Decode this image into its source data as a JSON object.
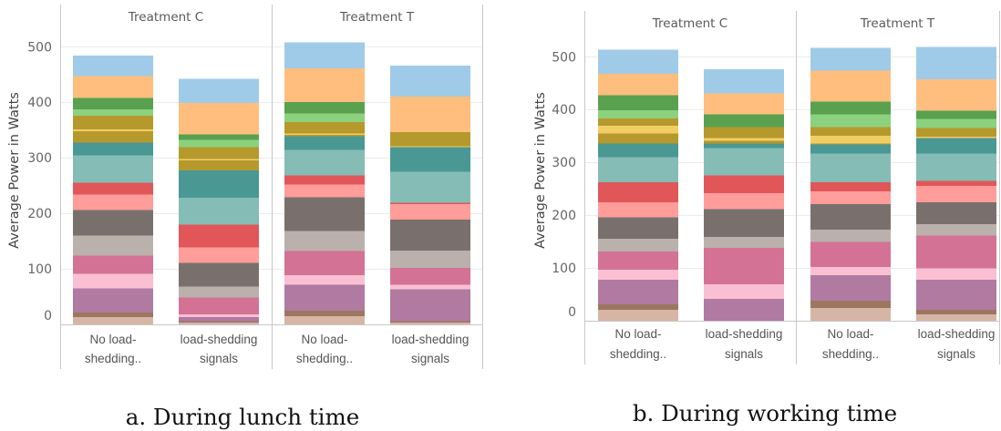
{
  "chart_data": [
    {
      "type": "bar",
      "stacked": true,
      "caption": "a. During lunch time",
      "ylabel": "Average Power in Watts",
      "ylim": [
        0,
        530
      ],
      "yticks": [
        0,
        100,
        200,
        300,
        400,
        500
      ],
      "grid": true,
      "facets": [
        "Treatment C",
        "Treatment T"
      ],
      "categories": [
        [
          "No load-",
          "shedding.."
        ],
        [
          "load-shedding",
          "signals"
        ]
      ],
      "series": [
        {
          "color": "#D7B5A6",
          "values": [
            [
              13,
              3
            ],
            [
              15,
              3
            ]
          ]
        },
        {
          "color": "#9D7660",
          "values": [
            [
              8,
              3
            ],
            [
              10,
              3
            ]
          ]
        },
        {
          "color": "#B07AA1",
          "values": [
            [
              44,
              7
            ],
            [
              46,
              57
            ]
          ]
        },
        {
          "color": "#FABFD2",
          "values": [
            [
              26,
              5
            ],
            [
              18,
              8
            ]
          ]
        },
        {
          "color": "#D37295",
          "values": [
            [
              33,
              30
            ],
            [
              43,
              31
            ]
          ]
        },
        {
          "color": "#BAB0AC",
          "values": [
            [
              36,
              20
            ],
            [
              36,
              31
            ]
          ]
        },
        {
          "color": "#79706E",
          "values": [
            [
              46,
              43
            ],
            [
              61,
              56
            ]
          ]
        },
        {
          "color": "#FF9D9A",
          "values": [
            [
              28,
              28
            ],
            [
              23,
              28
            ]
          ]
        },
        {
          "color": "#E15759",
          "values": [
            [
              21,
              41
            ],
            [
              16,
              2
            ]
          ]
        },
        {
          "color": "#86BCB6",
          "values": [
            [
              49,
              48
            ],
            [
              46,
              56
            ]
          ]
        },
        {
          "color": "#499894",
          "values": [
            [
              23,
              49
            ],
            [
              25,
              44
            ]
          ]
        },
        {
          "color": "#B6992D",
          "values": [
            [
              21,
              18
            ],
            [
              2,
              0
            ]
          ]
        },
        {
          "color": "#F1CE63",
          "values": [
            [
              3,
              3
            ],
            [
              3,
              2
            ]
          ]
        },
        {
          "color": "#B6992D",
          "values": [
            [
              25,
              21
            ],
            [
              20,
              25
            ]
          ]
        },
        {
          "color": "#8CD17D",
          "values": [
            [
              11,
              13
            ],
            [
              16,
              0
            ]
          ]
        },
        {
          "color": "#59A14F",
          "values": [
            [
              21,
              10
            ],
            [
              20,
              0
            ]
          ]
        },
        {
          "color": "#FFBE7D",
          "values": [
            [
              39,
              57
            ],
            [
              61,
              64
            ]
          ]
        },
        {
          "color": "#A0CBE8",
          "values": [
            [
              37,
              43
            ],
            [
              47,
              56
            ]
          ]
        }
      ]
    },
    {
      "type": "bar",
      "stacked": true,
      "caption": "b. During working time",
      "ylabel": "Average Power in Watts",
      "ylim": [
        0,
        535
      ],
      "yticks": [
        0,
        100,
        200,
        300,
        400,
        500
      ],
      "grid": true,
      "facets": [
        "Treatment C",
        "Treatment T"
      ],
      "categories": [
        [
          "No load-",
          "shedding.."
        ],
        [
          "load-shedding",
          "signals"
        ]
      ],
      "series": [
        {
          "color": "#D7B5A6",
          "values": [
            [
              21,
              0
            ],
            [
              24,
              12
            ]
          ]
        },
        {
          "color": "#9D7660",
          "values": [
            [
              10,
              0
            ],
            [
              14,
              9
            ]
          ]
        },
        {
          "color": "#B07AA1",
          "values": [
            [
              47,
              41
            ],
            [
              48,
              57
            ]
          ]
        },
        {
          "color": "#FABFD2",
          "values": [
            [
              19,
              28
            ],
            [
              16,
              21
            ]
          ]
        },
        {
          "color": "#D37295",
          "values": [
            [
              34,
              69
            ],
            [
              47,
              62
            ]
          ]
        },
        {
          "color": "#BAB0AC",
          "values": [
            [
              24,
              21
            ],
            [
              24,
              22
            ]
          ]
        },
        {
          "color": "#79706E",
          "values": [
            [
              41,
              52
            ],
            [
              48,
              41
            ]
          ]
        },
        {
          "color": "#FF9D9A",
          "values": [
            [
              28,
              31
            ],
            [
              24,
              31
            ]
          ]
        },
        {
          "color": "#E15759",
          "values": [
            [
              38,
              33
            ],
            [
              17,
              10
            ]
          ]
        },
        {
          "color": "#86BCB6",
          "values": [
            [
              48,
              52
            ],
            [
              55,
              52
            ]
          ]
        },
        {
          "color": "#499894",
          "values": [
            [
              26,
              9
            ],
            [
              17,
              29
            ]
          ]
        },
        {
          "color": "#B6992D",
          "values": [
            [
              19,
              5
            ],
            [
              2,
              0
            ]
          ]
        },
        {
          "color": "#F1CE63",
          "values": [
            [
              14,
              5
            ],
            [
              14,
              3
            ]
          ]
        },
        {
          "color": "#B6992D",
          "values": [
            [
              14,
              21
            ],
            [
              17,
              16
            ]
          ]
        },
        {
          "color": "#8CD17D",
          "values": [
            [
              16,
              0
            ],
            [
              24,
              17
            ]
          ]
        },
        {
          "color": "#59A14F",
          "values": [
            [
              28,
              24
            ],
            [
              24,
              16
            ]
          ]
        },
        {
          "color": "#FFBE7D",
          "values": [
            [
              41,
              40
            ],
            [
              59,
              59
            ]
          ]
        },
        {
          "color": "#A0CBE8",
          "values": [
            [
              45,
              45
            ],
            [
              43,
              62
            ]
          ]
        }
      ]
    }
  ]
}
